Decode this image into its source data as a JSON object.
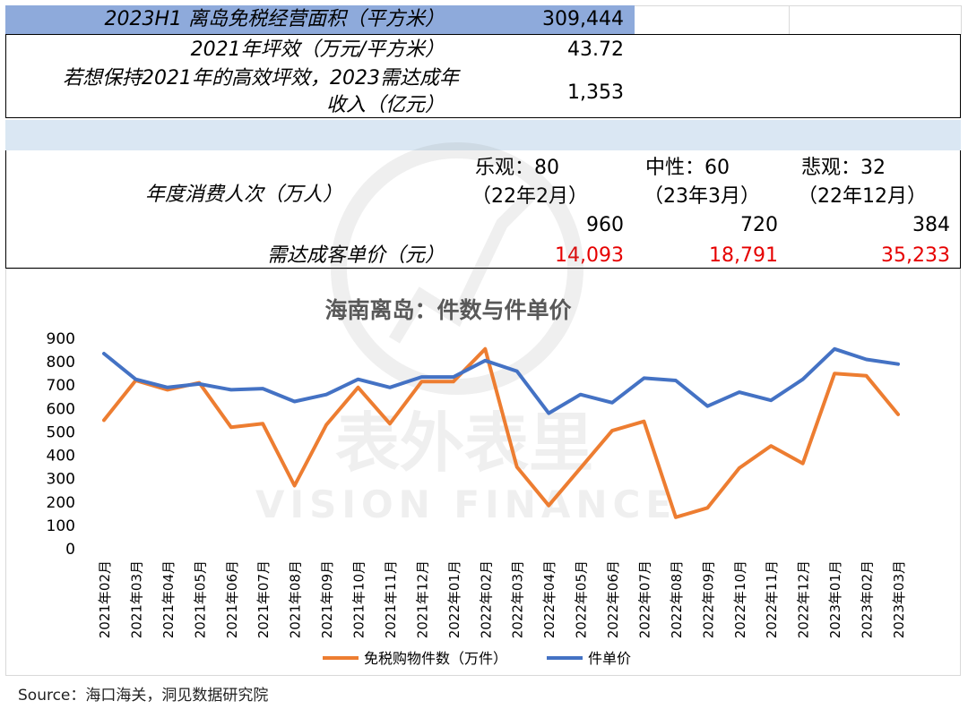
{
  "table": {
    "r1_label": "2023H1 离岛免税经营面积（平方米）",
    "r1_value": "309,444",
    "r2_label": "2021年坪效（万元/平方米）",
    "r2_value": "43.72",
    "r3_label_line1": "若想保持2021年的高效坪效，2023需达成年",
    "r3_label_line2": "收入（亿元）",
    "r3_value": "1,353",
    "r4_label": "年度消费人次（万人）",
    "scenarios": [
      {
        "line1": "乐观：80",
        "line2": "（22年2月）",
        "visits": "960",
        "price": "14,093"
      },
      {
        "line1": "中性：60",
        "line2": "（23年3月）",
        "visits": "720",
        "price": "18,791"
      },
      {
        "line1": "悲观：32",
        "line2": "（22年12月）",
        "visits": "384",
        "price": "35,233"
      }
    ],
    "r5_label": "需达成客单价（元）"
  },
  "chart_data": {
    "type": "line",
    "title": "海南离岛：件数与件单价",
    "categories": [
      "2021年02月",
      "2021年03月",
      "2021年04月",
      "2021年05月",
      "2021年06月",
      "2021年07月",
      "2021年08月",
      "2021年09月",
      "2021年10月",
      "2021年11月",
      "2021年12月",
      "2022年01月",
      "2022年02月",
      "2022年03月",
      "2022年04月",
      "2022年05月",
      "2022年06月",
      "2022年07月",
      "2022年08月",
      "2022年09月",
      "2022年10月",
      "2022年11月",
      "2022年12月",
      "2023年01月",
      "2023年02月",
      "2023年03月"
    ],
    "series": [
      {
        "name": "免税购物件数（万件）",
        "color": "#ed7d31",
        "values": [
          550,
          720,
          680,
          710,
          520,
          535,
          270,
          530,
          690,
          535,
          715,
          715,
          855,
          350,
          185,
          345,
          505,
          545,
          135,
          175,
          345,
          440,
          365,
          750,
          740,
          575
        ]
      },
      {
        "name": "件单价",
        "color": "#4472c4",
        "values": [
          835,
          725,
          690,
          705,
          680,
          685,
          630,
          660,
          725,
          690,
          735,
          735,
          805,
          760,
          580,
          660,
          625,
          730,
          720,
          610,
          670,
          635,
          725,
          855,
          810,
          790
        ]
      }
    ],
    "ylim": [
      0,
      900
    ],
    "yticks": [
      0,
      100,
      200,
      300,
      400,
      500,
      600,
      700,
      800,
      900
    ],
    "grid": false,
    "legend": "bottom"
  },
  "watermark": {
    "line1": "表外表里",
    "line2": "VISION FINANCE"
  },
  "source": "Source：海口海关，洞见数据研究院"
}
